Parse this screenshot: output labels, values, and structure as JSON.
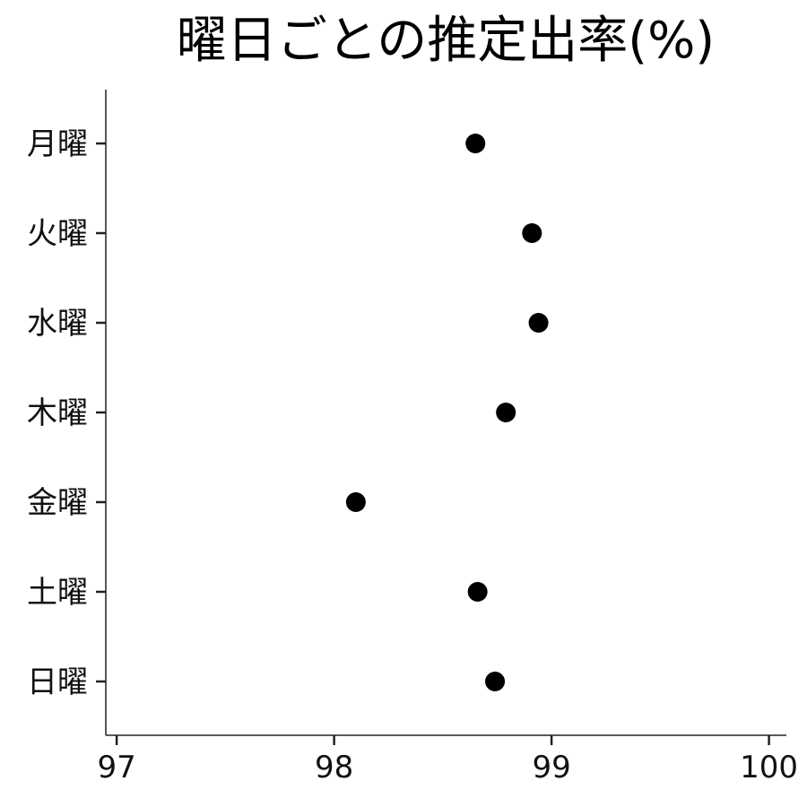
{
  "chart_data": {
    "type": "scatter",
    "title": "曜日ごとの推定出率(%)",
    "xlabel": "",
    "ylabel": "",
    "categories": [
      "月曜",
      "火曜",
      "水曜",
      "木曜",
      "金曜",
      "土曜",
      "日曜"
    ],
    "values": [
      98.65,
      98.91,
      98.94,
      98.79,
      98.1,
      98.66,
      98.74
    ],
    "xlim": [
      96.95,
      100.08
    ],
    "xticks": [
      97,
      98,
      99,
      100
    ],
    "xtick_labels": [
      "97",
      "98",
      "99",
      "100"
    ],
    "grid": false,
    "legend": "none",
    "point_color": "#000000"
  }
}
